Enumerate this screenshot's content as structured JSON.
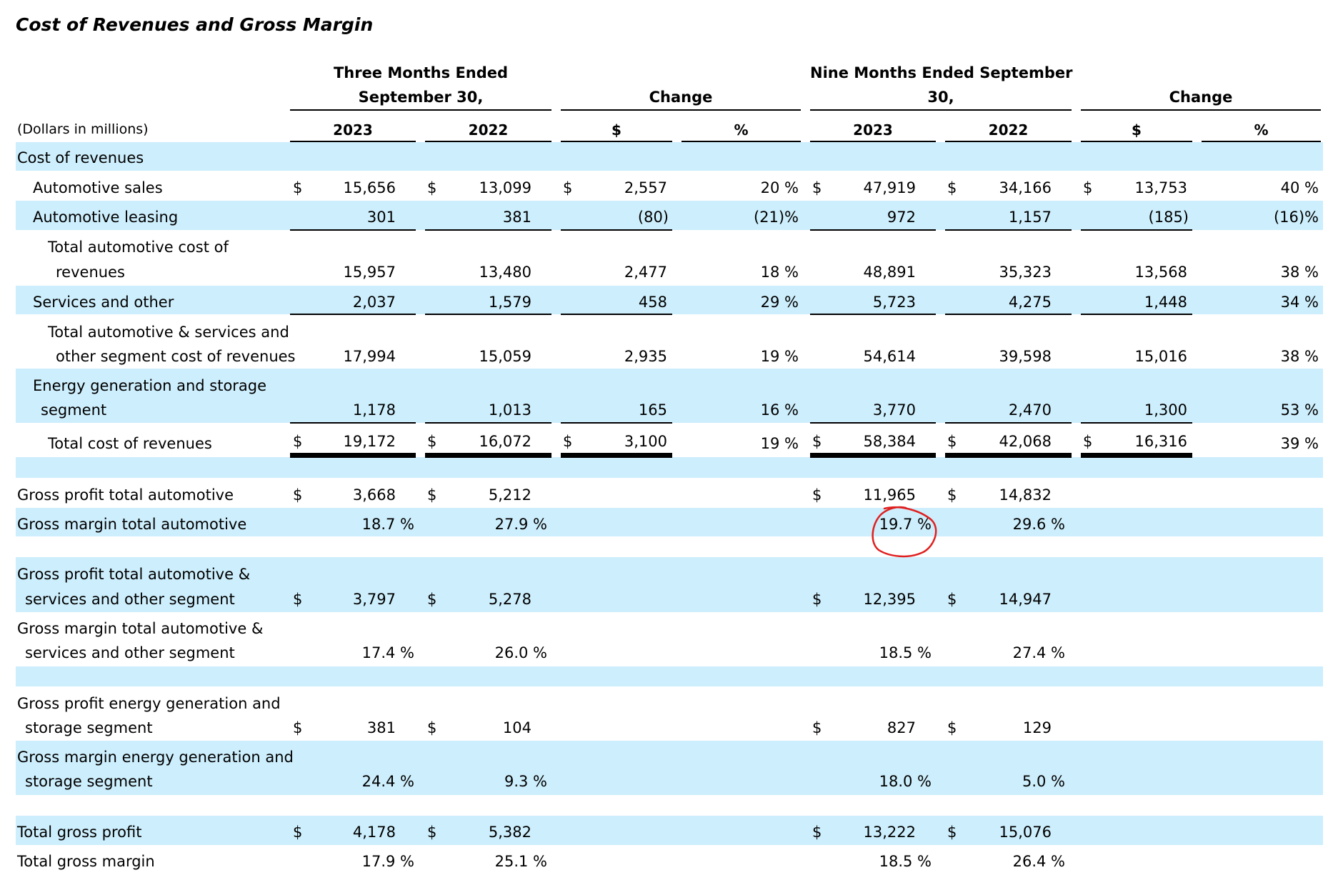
{
  "title": "Cost of Revenues and Gross Margin",
  "headers": {
    "three_months_line1": "Three Months Ended",
    "three_months_line2": "September 30,",
    "change_a": "Change",
    "nine_months_line1": "Nine Months Ended September",
    "nine_months_line2": "30,",
    "change_b": "Change",
    "units_label": "(Dollars in millions)",
    "col_2023_a": "2023",
    "col_2022_a": "2022",
    "col_dollar_a": "$",
    "col_pct_a": "%",
    "col_2023_b": "2023",
    "col_2022_b": "2022",
    "col_dollar_b": "$",
    "col_pct_b": "%"
  },
  "currency_symbol": "$",
  "rows": {
    "cost_of_revenues": {
      "label": "Cost of revenues"
    },
    "auto_sales": {
      "label": "Automotive sales",
      "q23": "15,656",
      "q22": "13,099",
      "chg": "2,557",
      "pct": "20 %",
      "n23": "47,919",
      "n22": "34,166",
      "nchg": "13,753",
      "npct": "40 %"
    },
    "auto_leasing": {
      "label": "Automotive leasing",
      "q23": "301",
      "q22": "381",
      "chg": "(80)",
      "pct": "(21)%",
      "n23": "972",
      "n22": "1,157",
      "nchg": "(185)",
      "npct": "(16)%"
    },
    "total_auto_cost": {
      "label1": "Total automotive cost of",
      "label2": "revenues",
      "q23": "15,957",
      "q22": "13,480",
      "chg": "2,477",
      "pct": "18 %",
      "n23": "48,891",
      "n22": "35,323",
      "nchg": "13,568",
      "npct": "38 %"
    },
    "services_other": {
      "label": "Services and other",
      "q23": "2,037",
      "q22": "1,579",
      "chg": "458",
      "pct": "29 %",
      "n23": "5,723",
      "n22": "4,275",
      "nchg": "1,448",
      "npct": "34 %"
    },
    "total_auto_services": {
      "label1": "Total automotive & services and",
      "label2": "other segment cost of revenues",
      "q23": "17,994",
      "q22": "15,059",
      "chg": "2,935",
      "pct": "19 %",
      "n23": "54,614",
      "n22": "39,598",
      "nchg": "15,016",
      "npct": "38 %"
    },
    "energy": {
      "label1": "Energy generation and storage",
      "label2": "segment",
      "q23": "1,178",
      "q22": "1,013",
      "chg": "165",
      "pct": "16 %",
      "n23": "3,770",
      "n22": "2,470",
      "nchg": "1,300",
      "npct": "53 %"
    },
    "total_cost": {
      "label": "Total cost of revenues",
      "q23": "19,172",
      "q22": "16,072",
      "chg": "3,100",
      "pct": "19 %",
      "n23": "58,384",
      "n22": "42,068",
      "nchg": "16,316",
      "npct": "39 %"
    },
    "gp_auto": {
      "label": "Gross profit total automotive",
      "q23": "3,668",
      "q22": "5,212",
      "n23": "11,965",
      "n22": "14,832"
    },
    "gm_auto": {
      "label": "Gross margin total automotive",
      "q23": "18.7 %",
      "q22": "27.9 %",
      "n23": "19.7 %",
      "n22": "29.6 %"
    },
    "gp_auto_services": {
      "label1": "Gross profit total automotive &",
      "label2": "services and other segment",
      "q23": "3,797",
      "q22": "5,278",
      "n23": "12,395",
      "n22": "14,947"
    },
    "gm_auto_services": {
      "label1": "Gross margin total automotive &",
      "label2": "services and other segment",
      "q23": "17.4 %",
      "q22": "26.0 %",
      "n23": "18.5 %",
      "n22": "27.4 %"
    },
    "gp_energy": {
      "label1": "Gross profit energy generation and",
      "label2": "storage segment",
      "q23": "381",
      "q22": "104",
      "n23": "827",
      "n22": "129"
    },
    "gm_energy": {
      "label1": "Gross margin energy generation and",
      "label2": "storage segment",
      "q23": "24.4 %",
      "q22": "9.3 %",
      "n23": "18.0 %",
      "n22": "5.0 %"
    },
    "total_gp": {
      "label": "Total gross profit",
      "q23": "4,178",
      "q22": "5,382",
      "n23": "13,222",
      "n22": "15,076"
    },
    "total_gm": {
      "label": "Total gross margin",
      "q23": "17.9 %",
      "q22": "25.1 %",
      "n23": "18.5 %",
      "n22": "26.4 %"
    }
  },
  "annotation": {
    "color": "#e02020",
    "target": "gm_auto.n23"
  }
}
